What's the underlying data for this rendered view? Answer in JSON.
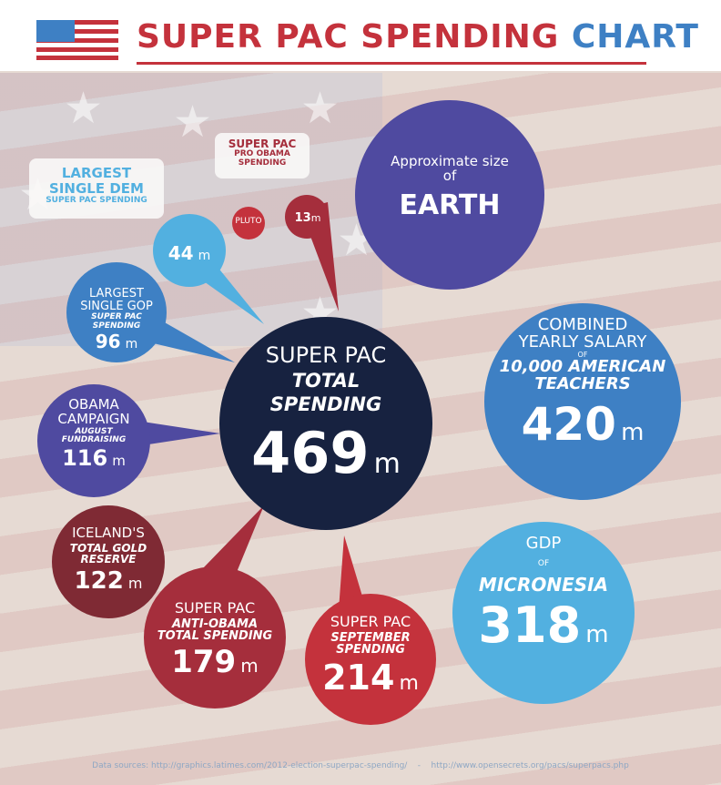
{
  "title": {
    "part1": "SUPER PAC SPENDING",
    "part2": "CHART"
  },
  "colors": {
    "red": "#c4323c",
    "blue": "#3e80c4",
    "navy": "#172240",
    "purple": "#4f4aa0",
    "light_blue": "#52b0e0",
    "dark_red": "#7f2a34"
  },
  "chart_data": {
    "type": "bubble",
    "units": "m",
    "bubbles": [
      {
        "label": "Super PAC Total Spending",
        "value": 469,
        "color": "#172240"
      },
      {
        "label": "Combined yearly salary of 10,000 American Teachers",
        "value": 420,
        "color": "#3e80c4"
      },
      {
        "label": "GDP of Micronesia",
        "value": 318,
        "color": "#52b0e0"
      },
      {
        "label": "Super PAC September Spending",
        "value": 214,
        "color": "#c4323c"
      },
      {
        "label": "Super PAC Anti-Obama Total Spending",
        "value": 179,
        "color": "#a52e3c"
      },
      {
        "label": "Iceland's Total Gold Reserve",
        "value": 122,
        "color": "#7f2a34"
      },
      {
        "label": "Obama Campaign August Fundraising",
        "value": 116,
        "color": "#4f4aa0"
      },
      {
        "label": "Largest Single GOP Super PAC Spending",
        "value": 96,
        "color": "#3e80c4"
      },
      {
        "label": "Largest Single Dem Super PAC Spending",
        "value": 44,
        "color": "#52b0e0"
      },
      {
        "label": "Super PAC Pro Obama Spending",
        "value": 13,
        "color": "#a52e3c"
      }
    ]
  },
  "labels": {
    "earth": {
      "line1": "Approximate size",
      "line2": "of",
      "big": "EARTH"
    },
    "pluto": "PLUTO",
    "total": {
      "line1": "SUPER PAC",
      "line2": "TOTAL",
      "line3": "SPENDING",
      "num": "469",
      "unit": "m"
    },
    "teachers": {
      "line1": "COMBINED",
      "line2": "YEARLY SALARY",
      "of": "OF",
      "line3": "10,000 AMERICAN",
      "line4": "TEACHERS",
      "num": "420",
      "unit": "m"
    },
    "micronesia": {
      "line1": "GDP",
      "of": "OF",
      "line2": "MICRONESIA",
      "num": "318",
      "unit": "m"
    },
    "september": {
      "line1": "SUPER PAC",
      "line2": "SEPTEMBER",
      "line3": "SPENDING",
      "num": "214",
      "unit": "m"
    },
    "anti_obama": {
      "line1": "SUPER PAC",
      "line2": "ANTI-OBAMA",
      "line3": "TOTAL SPENDING",
      "num": "179",
      "unit": "m"
    },
    "iceland": {
      "line1": "ICELAND'S",
      "line2": "TOTAL GOLD",
      "line3": "RESERVE",
      "num": "122",
      "unit": "m"
    },
    "obama_campaign": {
      "line1": "OBAMA",
      "line2": "CAMPAIGN",
      "line3": "AUGUST",
      "line4": "FUNDRAISING",
      "num": "116",
      "unit": "m"
    },
    "gop": {
      "line1": "LARGEST",
      "line2": "SINGLE GOP",
      "line3": "SUPER PAC",
      "line4": "SPENDING",
      "num": "96",
      "unit": "m"
    },
    "dem": {
      "num": "44",
      "unit": "m",
      "box_line1": "LARGEST",
      "box_line2": "SINGLE DEM",
      "box_line3": "SUPER PAC SPENDING"
    },
    "pro_obama": {
      "num": "13",
      "unit": "m",
      "box_line1": "SUPER PAC",
      "box_line2": "PRO OBAMA",
      "box_line3": "SPENDING"
    }
  },
  "sources": {
    "label": "Data sources:",
    "url1": "http://graphics.latimes.com/2012-election-superpac-spending/",
    "sep": "-",
    "url2": "http://www.opensecrets.org/pacs/superpacs.php"
  }
}
